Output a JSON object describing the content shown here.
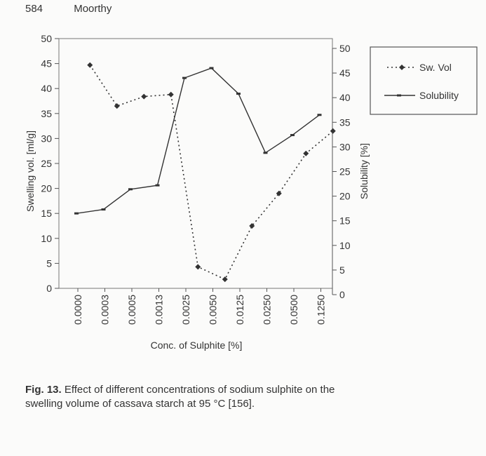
{
  "header": {
    "page_number": "584",
    "author": "Moorthy"
  },
  "caption": {
    "label": "Fig. 13.",
    "text": "Effect of different concentrations of sodium sulphite on the swelling volume of cassava starch at 95 °C [156]."
  },
  "chart_data": {
    "type": "line",
    "categories": [
      "0.0000",
      "0.0003",
      "0.0005",
      "0.0013",
      "0.0025",
      "0.0050",
      "0.0125",
      "0.0250",
      "0.0500",
      "0.1250"
    ],
    "xlabel": "Conc. of Sulphite [%]",
    "ylabel": "Swelling vol. [ml/g]",
    "y2label": "Solubility [%]",
    "ylim": [
      0,
      50
    ],
    "y2lim": [
      0,
      50
    ],
    "yticks": [
      "0",
      "5",
      "10",
      "15",
      "20",
      "25",
      "30",
      "35",
      "40",
      "45",
      "50"
    ],
    "y2ticks": [
      "0",
      "5",
      "10",
      "15",
      "20",
      "25",
      "30",
      "35",
      "40",
      "45",
      "50"
    ],
    "legend_position": "top-right",
    "series": [
      {
        "name": "Sw. Vol",
        "axis": "left",
        "style": "dotted",
        "marker": "diamond",
        "x_offset": 0.5,
        "values": [
          44.7,
          36.5,
          38.4,
          38.8,
          4.3,
          1.8,
          12.5,
          19.0,
          27.0,
          31.5
        ]
      },
      {
        "name": "Solubility",
        "axis": "right",
        "style": "solid",
        "marker": "dash",
        "x_offset": 0,
        "values": [
          16.5,
          17.3,
          21.4,
          22.2,
          44.0,
          46.0,
          40.8,
          28.8,
          32.4,
          36.5
        ]
      }
    ],
    "colors": {
      "line": "#333333",
      "axis": "#444444"
    }
  }
}
